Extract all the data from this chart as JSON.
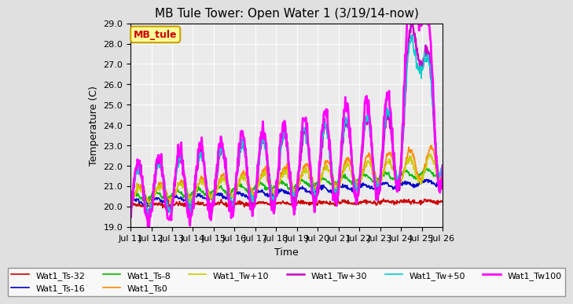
{
  "title": "MB Tule Tower: Open Water 1 (3/19/14-now)",
  "xlabel": "Time",
  "ylabel": "Temperature (C)",
  "ylim": [
    19.0,
    29.0
  ],
  "yticks": [
    19.0,
    20.0,
    21.0,
    22.0,
    23.0,
    24.0,
    25.0,
    26.0,
    27.0,
    28.0,
    29.0
  ],
  "xtick_labels": [
    "Jul 11",
    "Jul 12",
    "Jul 13",
    "Jul 14",
    "Jul 15",
    "Jul 16",
    "Jul 17",
    "Jul 18",
    "Jul 19",
    "Jul 20",
    "Jul 21",
    "Jul 22",
    "Jul 23",
    "Jul 24",
    "Jul 25",
    "Jul 26"
  ],
  "bg_color": "#e0e0e0",
  "plot_bg_color": "#ebebeb",
  "legend_box_color": "#ffff99",
  "legend_box_border": "#c8a000",
  "series": [
    {
      "label": "Wat1_Ts-32",
      "color": "#cc0000",
      "lw": 1.2
    },
    {
      "label": "Wat1_Ts-16",
      "color": "#0000cc",
      "lw": 1.2
    },
    {
      "label": "Wat1_Ts-8",
      "color": "#00bb00",
      "lw": 1.2
    },
    {
      "label": "Wat1_Ts0",
      "color": "#ff8800",
      "lw": 1.2
    },
    {
      "label": "Wat1_Tw+10",
      "color": "#cccc00",
      "lw": 1.2
    },
    {
      "label": "Wat1_Tw+30",
      "color": "#cc00cc",
      "lw": 1.8
    },
    {
      "label": "Wat1_Tw+50",
      "color": "#00cccc",
      "lw": 1.2
    },
    {
      "label": "Wat1_Tw100",
      "color": "#ff00ff",
      "lw": 2.0
    }
  ]
}
